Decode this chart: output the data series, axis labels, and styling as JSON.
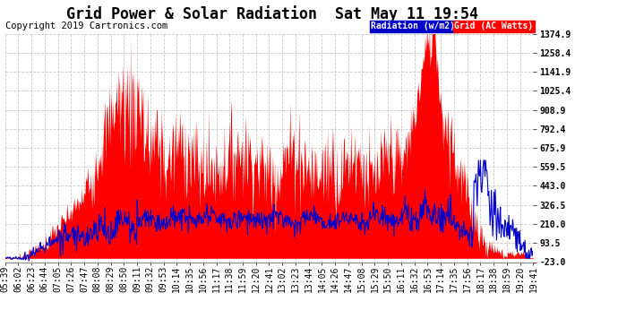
{
  "title": "Grid Power & Solar Radiation  Sat May 11 19:54",
  "copyright": "Copyright 2019 Cartronics.com",
  "legend_radiation": "Radiation (w/m2)",
  "legend_grid": "Grid (AC Watts)",
  "yticks": [
    -23.0,
    93.5,
    210.0,
    326.5,
    443.0,
    559.5,
    675.9,
    792.4,
    908.9,
    1025.4,
    1141.9,
    1258.4,
    1374.9
  ],
  "xtick_labels": [
    "05:39",
    "06:02",
    "06:23",
    "06:44",
    "07:05",
    "07:26",
    "07:47",
    "08:08",
    "08:29",
    "08:50",
    "09:11",
    "09:32",
    "09:53",
    "10:14",
    "10:35",
    "10:56",
    "11:17",
    "11:38",
    "11:59",
    "12:20",
    "12:41",
    "13:02",
    "13:23",
    "13:44",
    "14:05",
    "14:26",
    "14:47",
    "15:08",
    "15:29",
    "15:50",
    "16:11",
    "16:32",
    "16:53",
    "17:14",
    "17:35",
    "17:56",
    "18:17",
    "18:38",
    "18:59",
    "19:20",
    "19:41"
  ],
  "ymin": -23.0,
  "ymax": 1374.9,
  "bg_color": "#ffffff",
  "plot_bg_color": "#ffffff",
  "grid_color": "#c8c8c8",
  "radiation_fill_color": "#ff0000",
  "radiation_line_color": "#ff0000",
  "grid_line_color": "#0000cc",
  "title_fontsize": 12,
  "tick_fontsize": 7,
  "copyright_fontsize": 7.5
}
